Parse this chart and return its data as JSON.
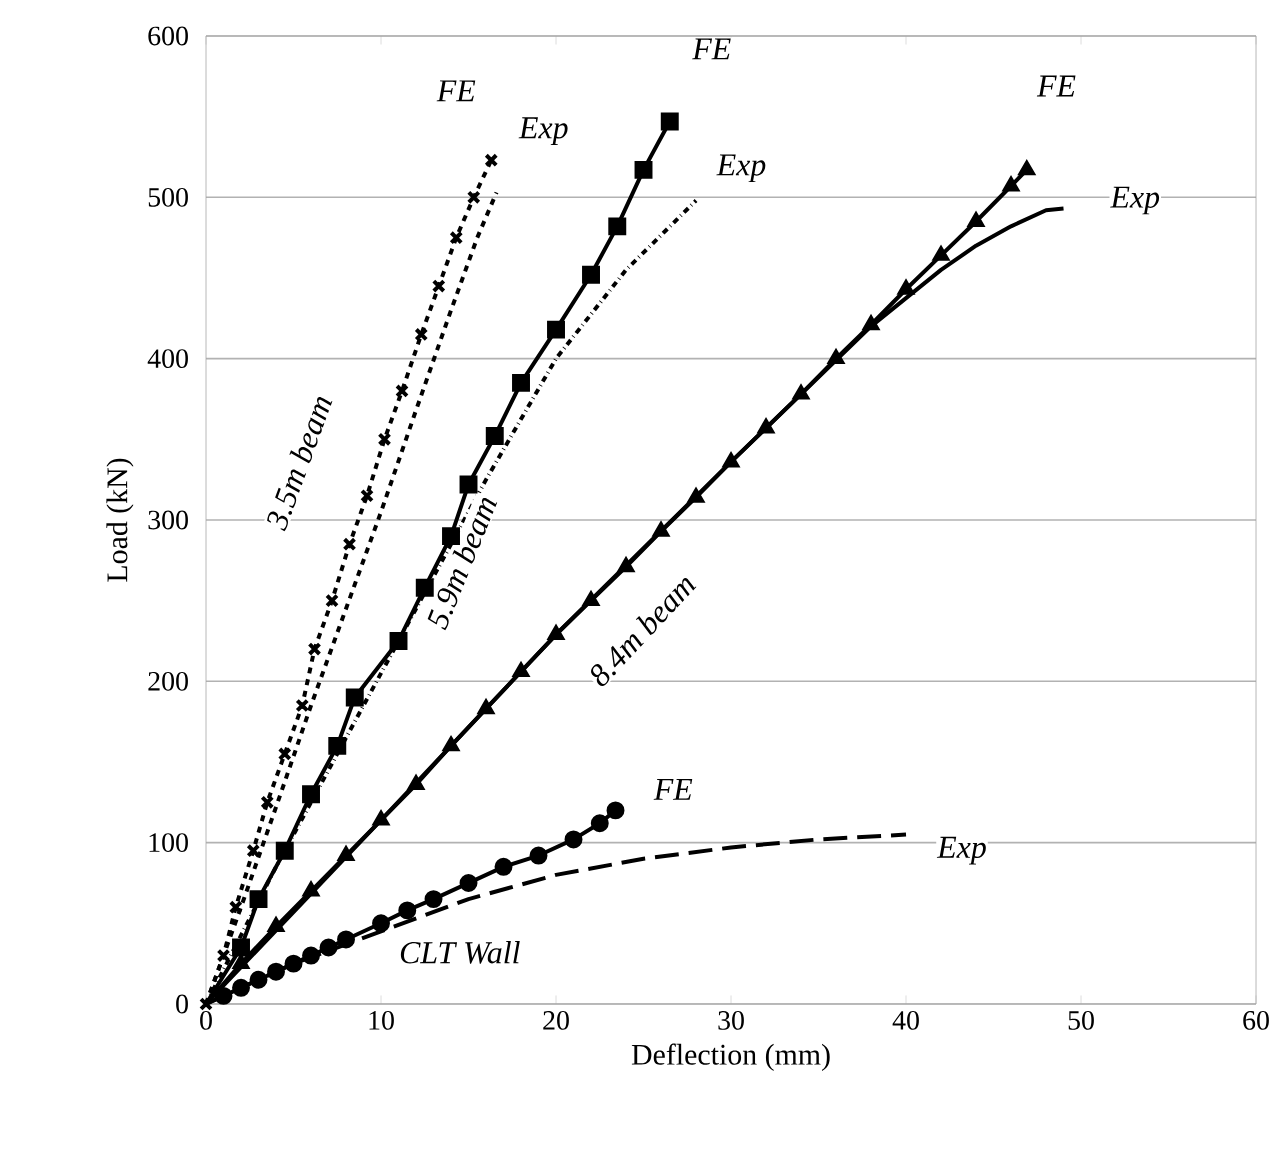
{
  "chart_data": {
    "type": "line",
    "xlabel": "Deflection (mm)",
    "ylabel": "Load (kN)",
    "xlim": [
      0,
      60
    ],
    "xticks": [
      0,
      10,
      20,
      30,
      40,
      50,
      60
    ],
    "ylim": [
      0,
      600
    ],
    "yticks": [
      0,
      100,
      200,
      300,
      400,
      500,
      600
    ],
    "grid": "y",
    "series": [
      {
        "color": "#000000",
        "marker": "cross",
        "line_style": "dashed",
        "x": [
          0,
          1,
          1.7,
          2.7,
          3.5,
          4.5,
          5.5,
          6.2,
          7.2,
          8.2,
          9.2,
          10.2,
          11.2,
          12.3,
          13.3,
          14.3,
          15.3,
          16.3
        ],
        "values": [
          0,
          30,
          60,
          95,
          125,
          155,
          185,
          220,
          250,
          285,
          315,
          350,
          380,
          415,
          445,
          475,
          500,
          523
        ]
      },
      {
        "color": "#000000",
        "marker": "none",
        "line_style": "dashed",
        "x": [
          0,
          2,
          4,
          6,
          8,
          10,
          12,
          14,
          15.5,
          16.6
        ],
        "values": [
          0,
          60,
          122,
          185,
          245,
          305,
          368,
          430,
          475,
          503
        ]
      },
      {
        "color": "#000000",
        "marker": "square",
        "line_style": "solid",
        "x": [
          0,
          2,
          3,
          4.5,
          6,
          7.5,
          8.5,
          11,
          12.5,
          14,
          15,
          16.5,
          18,
          20,
          22,
          23.5,
          25,
          26.5
        ],
        "values": [
          0,
          35,
          65,
          95,
          130,
          160,
          190,
          225,
          258,
          290,
          322,
          352,
          385,
          418,
          452,
          482,
          517,
          547
        ]
      },
      {
        "color": "#000000",
        "marker": "none",
        "line_style": "dashdot",
        "x": [
          0,
          4,
          8,
          12,
          16,
          20,
          24,
          28
        ],
        "values": [
          0,
          85,
          165,
          245,
          325,
          400,
          455,
          498
        ]
      },
      {
        "color": "#000000",
        "marker": "triangle",
        "line_style": "solid",
        "x": [
          0,
          2,
          4,
          6,
          8,
          10,
          12,
          14,
          16,
          18,
          20,
          22,
          24,
          26,
          28,
          30,
          32,
          34,
          36,
          38,
          40,
          42,
          44,
          46,
          46.9
        ],
        "values": [
          0,
          25,
          48,
          70,
          92,
          114,
          136,
          160,
          183,
          206,
          229,
          250,
          271,
          293,
          314,
          336,
          357,
          378,
          400,
          421,
          443,
          464,
          485,
          507,
          517
        ]
      },
      {
        "color": "#000000",
        "marker": "none",
        "line_style": "solid",
        "x": [
          0,
          10,
          20,
          30,
          38,
          42,
          44,
          46,
          48,
          49
        ],
        "values": [
          0,
          114,
          229,
          336,
          420,
          455,
          470,
          482,
          492,
          493
        ]
      },
      {
        "color": "#000000",
        "marker": "circle",
        "line_style": "solid",
        "x": [
          0,
          1,
          2,
          3,
          4,
          5,
          6,
          7,
          8,
          10,
          11.5,
          13,
          15,
          17,
          19,
          21,
          22.5,
          23.4
        ],
        "values": [
          0,
          5,
          10,
          15,
          20,
          25,
          30,
          35,
          40,
          50,
          58,
          65,
          75,
          85,
          92,
          102,
          112,
          120
        ]
      },
      {
        "color": "#000000",
        "marker": "none",
        "line_style": "longdashed",
        "x": [
          0,
          5,
          10,
          15,
          20,
          25,
          30,
          35,
          40
        ],
        "values": [
          0,
          25,
          45,
          65,
          80,
          90,
          97,
          102,
          105
        ]
      }
    ],
    "annotations": [
      {
        "text": "*FE*",
        "x": 14.3,
        "y": 566
      },
      {
        "text": "*Exp*",
        "x": 19.3,
        "y": 541
      },
      {
        "text": "*FE*",
        "x": 28.9,
        "y": 592
      },
      {
        "text": "*Exp*",
        "x": 30.6,
        "y": 518
      },
      {
        "text": "*FE*",
        "x": 48.6,
        "y": 569
      },
      {
        "text": "*Exp*",
        "x": 53.1,
        "y": 498
      },
      {
        "text": "*FE*",
        "x": 26.7,
        "y": 133
      },
      {
        "text": "*Exp*",
        "x": 43.2,
        "y": 95
      },
      "*3.5m beam*",
      "*5.9m beam*",
      "*8.4m beam*",
      "*CLT Wall*"
    ]
  }
}
